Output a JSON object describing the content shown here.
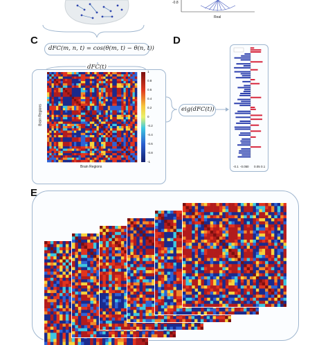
{
  "panels": {
    "c": {
      "letter": "C"
    },
    "d": {
      "letter": "D"
    },
    "e": {
      "letter": "E"
    }
  },
  "formulas": {
    "dfc_definition": "dFC(m, n, t) = cos(θ(m, t) − θ(n, t))",
    "dfc_matrix_label": "dFC(t)",
    "eig_label": "eig(dFC(t))"
  },
  "panel_b_plot": {
    "y_tick": "-0.8",
    "x_axis_label": "Real"
  },
  "dfc_matrix": {
    "x_axis_label": "Brain Regions",
    "y_axis_label": "Brain Regions",
    "colorbar_ticks": [
      "1",
      "0.8",
      "0.6",
      "0.4",
      "0.2",
      "0",
      "-0.2",
      "-0.4",
      "-0.6",
      "-0.8",
      "-1"
    ]
  },
  "eigenvector_chart": {
    "x_ticks": [
      "-0.1",
      "-0.05",
      "0",
      "0.05",
      "0.1"
    ]
  },
  "colors": {
    "box_border": "#9fb6cf",
    "positive": "#d7263d",
    "negative": "#2b3fae",
    "neutral": "#ffd23f",
    "accent_cyan": "#3fc8e0"
  }
}
